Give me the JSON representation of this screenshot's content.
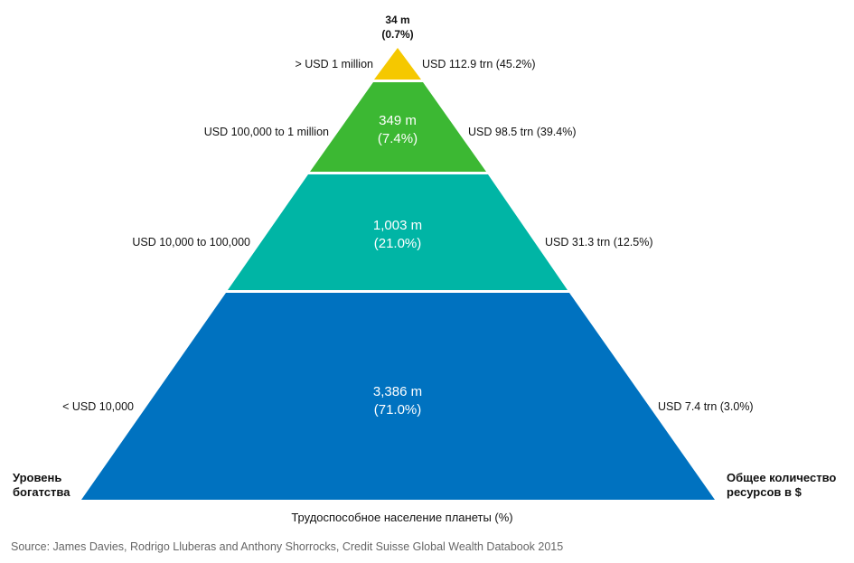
{
  "tiers": [
    {
      "id": "top",
      "count": "34 m",
      "share": "(0.7%)",
      "wealth_band": "> USD 1 million",
      "total": "USD 112.9 trn (45.2%)",
      "color": "#f5c800"
    },
    {
      "id": "upper",
      "count": "349 m",
      "share": "(7.4%)",
      "wealth_band": "USD 100,000 to 1 million",
      "total": "USD 98.5 trn (39.4%)",
      "color": "#3cb833"
    },
    {
      "id": "middle",
      "count": "1,003 m",
      "share": "(21.0%)",
      "wealth_band": "USD 10,000 to 100,000",
      "total": "USD 31.3 trn (12.5%)",
      "color": "#00b5a5"
    },
    {
      "id": "base",
      "count": "3,386 m",
      "share": "(71.0%)",
      "wealth_band": "< USD 10,000",
      "total": "USD 7.4 trn (3.0%)",
      "color": "#0072c0"
    }
  ],
  "left_axis_label": {
    "line1": "Уровень",
    "line2": "богатства"
  },
  "right_axis_label": {
    "line1": "Общее количество",
    "line2": "ресурсов в $"
  },
  "bottom_caption": "Трудоспособное население планеты (%)",
  "source": "Source: James Davies, Rodrigo Lluberas and Anthony Shorrocks, Credit Suisse Global Wealth Databook 2015"
}
